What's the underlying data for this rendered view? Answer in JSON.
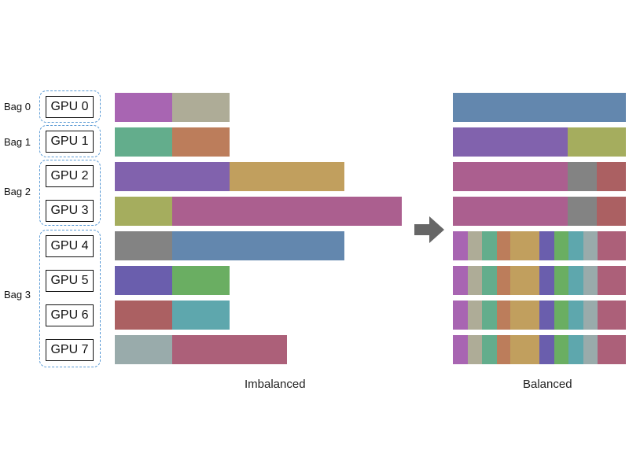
{
  "bags": [
    {
      "label": "Bag 0",
      "gpus": [
        "GPU 0"
      ]
    },
    {
      "label": "Bag 1",
      "gpus": [
        "GPU 1"
      ]
    },
    {
      "label": "Bag 2",
      "gpus": [
        "GPU 2",
        "GPU 3"
      ]
    },
    {
      "label": "Bag 3",
      "gpus": [
        "GPU 4",
        "GPU 5",
        "GPU 6",
        "GPU 7"
      ]
    }
  ],
  "imbalanced": {
    "caption": "Imbalanced",
    "unit_width": 73,
    "rows": [
      [
        {
          "color": "#a865b2",
          "units": 1
        },
        {
          "color": "#aeac97",
          "units": 1
        }
      ],
      [
        {
          "color": "#63ad8c",
          "units": 1
        },
        {
          "color": "#bc7d5b",
          "units": 1
        }
      ],
      [
        {
          "color": "#8162ad",
          "units": 2
        },
        {
          "color": "#c19f5e",
          "units": 2
        }
      ],
      [
        {
          "color": "#a5ad5e",
          "units": 1
        },
        {
          "color": "#ab5f8f",
          "units": 4
        }
      ],
      [
        {
          "color": "#838383",
          "units": 1
        },
        {
          "color": "#6387ae",
          "units": 3
        }
      ],
      [
        {
          "color": "#6a5ead",
          "units": 1
        },
        {
          "color": "#6aae62",
          "units": 1
        }
      ],
      [
        {
          "color": "#ab6062",
          "units": 1
        },
        {
          "color": "#5ea7ad",
          "units": 1
        }
      ],
      [
        {
          "color": "#99abab",
          "units": 1
        },
        {
          "color": "#ac6079",
          "units": 2
        }
      ]
    ]
  },
  "balanced": {
    "caption": "Balanced",
    "rows": [
      [
        {
          "color": "#6387ae",
          "w": 220
        }
      ],
      [
        {
          "color": "#8162ad",
          "w": 146
        },
        {
          "color": "#a5ad5e",
          "w": 74
        }
      ],
      [
        {
          "color": "#ab5f8f",
          "w": 146
        },
        {
          "color": "#838383",
          "w": 37
        },
        {
          "color": "#ab6062",
          "w": 37
        }
      ],
      [
        {
          "color": "#ab5f8f",
          "w": 146
        },
        {
          "color": "#838383",
          "w": 37
        },
        {
          "color": "#ab6062",
          "w": 37
        }
      ],
      [
        {
          "color": "#a865b2",
          "w": 19
        },
        {
          "color": "#aeac97",
          "w": 18
        },
        {
          "color": "#63ad8c",
          "w": 19
        },
        {
          "color": "#bc7d5b",
          "w": 17
        },
        {
          "color": "#c19f5e",
          "w": 37
        },
        {
          "color": "#6a5ead",
          "w": 19
        },
        {
          "color": "#6aae62",
          "w": 18
        },
        {
          "color": "#5ea7ad",
          "w": 19
        },
        {
          "color": "#99abab",
          "w": 18
        },
        {
          "color": "#ac6079",
          "w": 36
        }
      ],
      [
        {
          "color": "#a865b2",
          "w": 19
        },
        {
          "color": "#aeac97",
          "w": 18
        },
        {
          "color": "#63ad8c",
          "w": 19
        },
        {
          "color": "#bc7d5b",
          "w": 17
        },
        {
          "color": "#c19f5e",
          "w": 37
        },
        {
          "color": "#6a5ead",
          "w": 19
        },
        {
          "color": "#6aae62",
          "w": 18
        },
        {
          "color": "#5ea7ad",
          "w": 19
        },
        {
          "color": "#99abab",
          "w": 18
        },
        {
          "color": "#ac6079",
          "w": 36
        }
      ],
      [
        {
          "color": "#a865b2",
          "w": 19
        },
        {
          "color": "#aeac97",
          "w": 18
        },
        {
          "color": "#63ad8c",
          "w": 19
        },
        {
          "color": "#bc7d5b",
          "w": 17
        },
        {
          "color": "#c19f5e",
          "w": 37
        },
        {
          "color": "#6a5ead",
          "w": 19
        },
        {
          "color": "#6aae62",
          "w": 18
        },
        {
          "color": "#5ea7ad",
          "w": 19
        },
        {
          "color": "#99abab",
          "w": 18
        },
        {
          "color": "#ac6079",
          "w": 36
        }
      ],
      [
        {
          "color": "#a865b2",
          "w": 19
        },
        {
          "color": "#aeac97",
          "w": 18
        },
        {
          "color": "#63ad8c",
          "w": 19
        },
        {
          "color": "#bc7d5b",
          "w": 17
        },
        {
          "color": "#c19f5e",
          "w": 37
        },
        {
          "color": "#6a5ead",
          "w": 19
        },
        {
          "color": "#6aae62",
          "w": 18
        },
        {
          "color": "#5ea7ad",
          "w": 19
        },
        {
          "color": "#99abab",
          "w": 18
        },
        {
          "color": "#ac6079",
          "w": 36
        }
      ]
    ]
  },
  "arrow_color": "#666666",
  "group_border_color": "#5b9bd5"
}
